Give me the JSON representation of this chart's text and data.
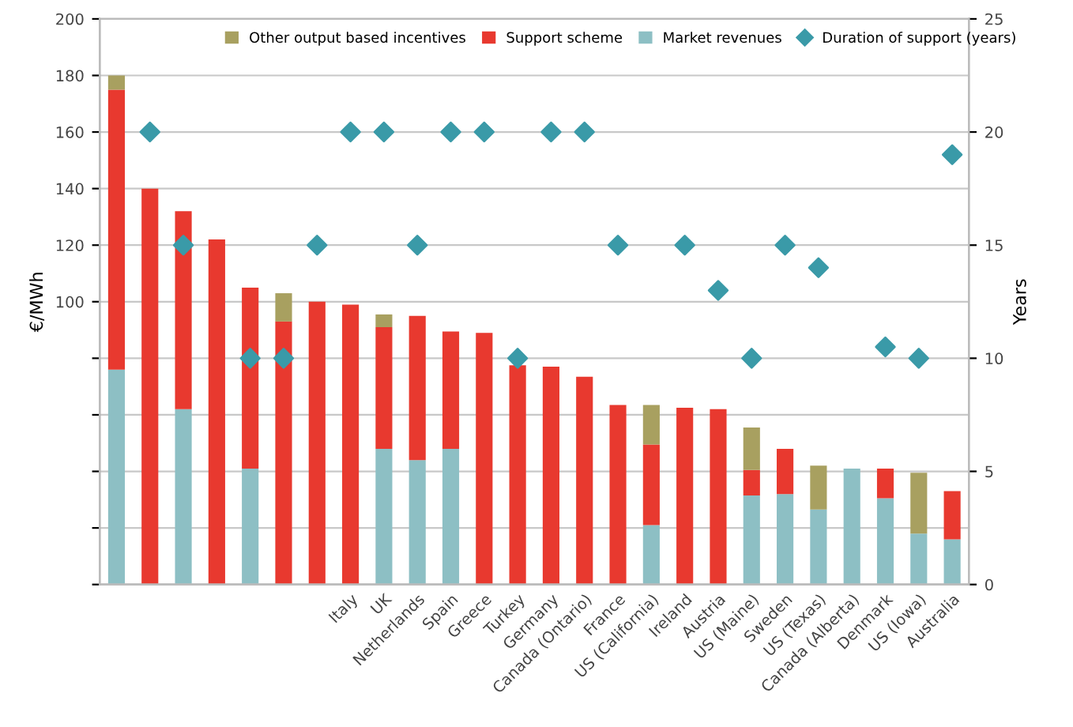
{
  "chart_data": {
    "type": "bar",
    "stacked": true,
    "ylabel": "€/MWh",
    "y2label": "Years",
    "categories": [
      null,
      null,
      null,
      null,
      null,
      null,
      null,
      "Italy",
      "UK",
      "Netherlands",
      "Spain",
      "Greece",
      "Turkey",
      "Germany",
      "Canada (Ontario)",
      "France",
      "US (California)",
      "Ireland",
      "Austria",
      "US (Maine)",
      "Sweden",
      "US (Texas)",
      "Canada (Alberta)",
      "Denmark",
      "US (Iowa)",
      "Australia"
    ],
    "series": [
      {
        "name": "Market revenues",
        "color": "#8dbfc4",
        "values": [
          76,
          0,
          62,
          0,
          41,
          0,
          0,
          0,
          48,
          44,
          48,
          0,
          0,
          0,
          0,
          0,
          21,
          0,
          0,
          31.5,
          32,
          26.5,
          41,
          30.5,
          18,
          16
        ]
      },
      {
        "name": "Support scheme",
        "color": "#e8392f",
        "values": [
          99,
          140,
          70,
          122,
          64,
          93,
          100,
          99,
          43,
          51,
          41.5,
          89,
          77.5,
          77,
          73.5,
          63.5,
          28.5,
          62.5,
          62,
          9,
          16,
          0,
          0,
          10.5,
          0,
          17
        ]
      },
      {
        "name": "Other output based incentives",
        "color": "#a8a060",
        "values": [
          5,
          0,
          0,
          0,
          0,
          10,
          0,
          0,
          4.5,
          0,
          0,
          0,
          0,
          0,
          0,
          0,
          14,
          0,
          0,
          15,
          0,
          15.5,
          0,
          0,
          21.5,
          0
        ]
      },
      {
        "name": "Duration of support (years)",
        "type": "scatter",
        "axis": "y2",
        "marker": "diamond",
        "color": "#3a9aa8",
        "values": [
          null,
          20,
          15,
          null,
          10,
          10,
          15,
          20,
          20,
          15,
          20,
          20,
          10,
          20,
          20,
          15,
          null,
          15,
          13,
          10,
          15,
          14,
          null,
          10.5,
          10,
          19
        ]
      }
    ],
    "ylim": [
      0,
      200
    ],
    "yticks": [
      {
        "value": 0,
        "label": null
      },
      {
        "value": 20,
        "label": null
      },
      {
        "value": 40,
        "label": null
      },
      {
        "value": 60,
        "label": null
      },
      {
        "value": 80,
        "label": null
      },
      100,
      120,
      140,
      160,
      180,
      200
    ],
    "y2lim": [
      0,
      25
    ],
    "y2ticks": [
      0,
      5,
      10,
      15,
      20,
      25
    ],
    "grid": "y",
    "legend": "top"
  }
}
